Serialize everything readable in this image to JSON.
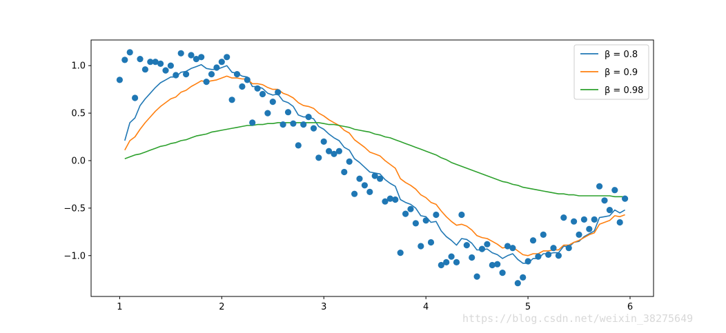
{
  "chart_data": {
    "type": "scatter",
    "xlim": [
      0.72,
      6.23
    ],
    "ylim": [
      -1.43,
      1.27
    ],
    "x_ticks": [
      1,
      2,
      3,
      4,
      5,
      6
    ],
    "x_tick_labels": [
      "1",
      "2",
      "3",
      "4",
      "5",
      "6"
    ],
    "y_ticks": [
      1.0,
      0.5,
      0.0,
      -0.5,
      -1.0
    ],
    "y_tick_labels": [
      "1.0",
      "0.5",
      "0.0",
      "−0.5",
      "−1.0"
    ],
    "grid": false,
    "legend_position": "top-right",
    "scatter": {
      "color": "#1f77b4",
      "x": [
        1.0,
        1.05,
        1.1,
        1.15,
        1.2,
        1.25,
        1.3,
        1.35,
        1.4,
        1.45,
        1.5,
        1.55,
        1.6,
        1.65,
        1.7,
        1.75,
        1.8,
        1.85,
        1.9,
        1.95,
        2.0,
        2.05,
        2.1,
        2.15,
        2.2,
        2.25,
        2.3,
        2.35,
        2.4,
        2.45,
        2.5,
        2.55,
        2.6,
        2.65,
        2.7,
        2.75,
        2.8,
        2.85,
        2.9,
        2.95,
        3.0,
        3.05,
        3.1,
        3.15,
        3.2,
        3.25,
        3.3,
        3.35,
        3.4,
        3.45,
        3.5,
        3.55,
        3.6,
        3.65,
        3.7,
        3.75,
        3.8,
        3.85,
        3.9,
        3.95,
        4.0,
        4.05,
        4.1,
        4.15,
        4.2,
        4.25,
        4.3,
        4.35,
        4.4,
        4.45,
        4.5,
        4.55,
        4.6,
        4.65,
        4.7,
        4.75,
        4.8,
        4.85,
        4.9,
        4.95,
        5.0,
        5.05,
        5.1,
        5.15,
        5.2,
        5.25,
        5.3,
        5.35,
        5.4,
        5.45,
        5.5,
        5.55,
        5.6,
        5.65,
        5.7,
        5.75,
        5.8,
        5.85,
        5.9,
        5.95
      ],
      "y": [
        0.85,
        1.06,
        1.14,
        0.66,
        1.07,
        0.96,
        1.04,
        1.04,
        1.02,
        0.95,
        1.0,
        0.9,
        1.13,
        0.91,
        1.11,
        1.07,
        1.09,
        0.83,
        0.91,
        0.98,
        1.04,
        1.09,
        0.64,
        0.91,
        0.78,
        0.85,
        0.4,
        0.76,
        0.7,
        0.5,
        0.62,
        0.72,
        0.38,
        0.51,
        0.39,
        0.16,
        0.38,
        0.46,
        0.34,
        0.03,
        0.2,
        0.1,
        0.07,
        0.1,
        -0.12,
        -0.01,
        -0.35,
        -0.19,
        -0.26,
        -0.33,
        -0.16,
        -0.19,
        -0.43,
        -0.4,
        -0.41,
        -0.97,
        -0.56,
        -0.51,
        -0.66,
        -0.9,
        -0.63,
        -0.86,
        -0.57,
        -1.1,
        -1.07,
        -1.01,
        -1.07,
        -0.57,
        -0.89,
        -1.02,
        -1.22,
        -0.93,
        -0.88,
        -1.1,
        -1.09,
        -1.18,
        -0.9,
        -0.92,
        -1.29,
        -1.23,
        -1.06,
        -0.84,
        -1.01,
        -0.78,
        -0.99,
        -0.92,
        -1.0,
        -0.6,
        -0.92,
        -0.64,
        -0.78,
        -0.62,
        -0.72,
        -0.62,
        -0.27,
        -0.42,
        -0.52,
        -0.31,
        -0.65,
        -0.4
      ]
    },
    "series": [
      {
        "name": "β = 0.8",
        "color": "#1f77b4",
        "x": [
          1.05,
          1.1,
          1.15,
          1.2,
          1.25,
          1.3,
          1.35,
          1.4,
          1.45,
          1.5,
          1.55,
          1.6,
          1.65,
          1.7,
          1.75,
          1.8,
          1.85,
          1.9,
          1.95,
          2.0,
          2.05,
          2.1,
          2.15,
          2.2,
          2.25,
          2.3,
          2.35,
          2.4,
          2.45,
          2.5,
          2.55,
          2.6,
          2.65,
          2.7,
          2.75,
          2.8,
          2.85,
          2.9,
          2.95,
          3.0,
          3.05,
          3.1,
          3.15,
          3.2,
          3.25,
          3.3,
          3.35,
          3.4,
          3.45,
          3.5,
          3.55,
          3.6,
          3.65,
          3.7,
          3.75,
          3.8,
          3.85,
          3.9,
          3.95,
          4.0,
          4.05,
          4.1,
          4.15,
          4.2,
          4.25,
          4.3,
          4.35,
          4.4,
          4.45,
          4.5,
          4.55,
          4.6,
          4.65,
          4.7,
          4.75,
          4.8,
          4.85,
          4.9,
          4.95,
          5.0,
          5.05,
          5.1,
          5.15,
          5.2,
          5.25,
          5.3,
          5.35,
          5.4,
          5.45,
          5.5,
          5.55,
          5.6,
          5.65,
          5.7,
          5.75,
          5.8,
          5.85,
          5.9,
          5.95
        ],
        "y": [
          0.21,
          0.4,
          0.45,
          0.58,
          0.65,
          0.71,
          0.77,
          0.82,
          0.85,
          0.88,
          0.88,
          0.93,
          0.94,
          0.97,
          0.99,
          1.01,
          0.97,
          0.96,
          0.96,
          0.98,
          1.0,
          0.93,
          0.92,
          0.89,
          0.88,
          0.78,
          0.78,
          0.76,
          0.71,
          0.69,
          0.7,
          0.63,
          0.61,
          0.57,
          0.48,
          0.46,
          0.46,
          0.44,
          0.36,
          0.33,
          0.28,
          0.24,
          0.21,
          0.14,
          0.11,
          0.02,
          -0.02,
          -0.07,
          -0.12,
          -0.13,
          -0.14,
          -0.2,
          -0.24,
          -0.27,
          -0.41,
          -0.44,
          -0.46,
          -0.5,
          -0.58,
          -0.59,
          -0.65,
          -0.64,
          -0.74,
          -0.8,
          -0.84,
          -0.89,
          -0.82,
          -0.83,
          -0.87,
          -0.94,
          -0.94,
          -0.93,
          -0.97,
          -0.99,
          -1.03,
          -1.0,
          -0.98,
          -1.04,
          -1.08,
          -1.08,
          -1.03,
          -1.03,
          -0.98,
          -0.98,
          -0.97,
          -0.97,
          -0.9,
          -0.91,
          -0.86,
          -0.85,
          -0.8,
          -0.77,
          -0.74,
          -0.6,
          -0.59,
          -0.58,
          -0.52,
          -0.55,
          -0.52
        ]
      },
      {
        "name": "β = 0.9",
        "color": "#ff7f0e",
        "x": [
          1.05,
          1.1,
          1.15,
          1.2,
          1.25,
          1.3,
          1.35,
          1.4,
          1.45,
          1.5,
          1.55,
          1.6,
          1.65,
          1.7,
          1.75,
          1.8,
          1.85,
          1.9,
          1.95,
          2.0,
          2.05,
          2.1,
          2.15,
          2.2,
          2.25,
          2.3,
          2.35,
          2.4,
          2.45,
          2.5,
          2.55,
          2.6,
          2.65,
          2.7,
          2.75,
          2.8,
          2.85,
          2.9,
          2.95,
          3.0,
          3.05,
          3.1,
          3.15,
          3.2,
          3.25,
          3.3,
          3.35,
          3.4,
          3.45,
          3.5,
          3.55,
          3.6,
          3.65,
          3.7,
          3.75,
          3.8,
          3.85,
          3.9,
          3.95,
          4.0,
          4.05,
          4.1,
          4.15,
          4.2,
          4.25,
          4.3,
          4.35,
          4.4,
          4.45,
          4.5,
          4.55,
          4.6,
          4.65,
          4.7,
          4.75,
          4.8,
          4.85,
          4.9,
          4.95,
          5.0,
          5.05,
          5.1,
          5.15,
          5.2,
          5.25,
          5.3,
          5.35,
          5.4,
          5.45,
          5.5,
          5.55,
          5.6,
          5.65,
          5.7,
          5.75,
          5.8,
          5.85,
          5.9,
          5.95
        ],
        "y": [
          0.11,
          0.21,
          0.25,
          0.33,
          0.4,
          0.46,
          0.52,
          0.57,
          0.61,
          0.65,
          0.67,
          0.72,
          0.74,
          0.78,
          0.81,
          0.84,
          0.83,
          0.84,
          0.85,
          0.87,
          0.89,
          0.87,
          0.87,
          0.86,
          0.86,
          0.81,
          0.81,
          0.8,
          0.77,
          0.75,
          0.75,
          0.71,
          0.69,
          0.66,
          0.61,
          0.58,
          0.57,
          0.55,
          0.5,
          0.47,
          0.43,
          0.4,
          0.37,
          0.32,
          0.29,
          0.22,
          0.18,
          0.14,
          0.09,
          0.07,
          0.05,
          0.0,
          -0.04,
          -0.08,
          -0.19,
          -0.23,
          -0.26,
          -0.3,
          -0.36,
          -0.39,
          -0.44,
          -0.46,
          -0.53,
          -0.59,
          -0.64,
          -0.68,
          -0.67,
          -0.69,
          -0.73,
          -0.79,
          -0.81,
          -0.82,
          -0.85,
          -0.88,
          -0.92,
          -0.91,
          -0.91,
          -0.95,
          -0.99,
          -1.0,
          -0.98,
          -0.98,
          -0.95,
          -0.95,
          -0.94,
          -0.94,
          -0.89,
          -0.89,
          -0.86,
          -0.84,
          -0.81,
          -0.78,
          -0.76,
          -0.67,
          -0.65,
          -0.63,
          -0.58,
          -0.59,
          -0.57
        ]
      },
      {
        "name": "β = 0.98",
        "color": "#2ca02c",
        "x": [
          1.05,
          1.1,
          1.15,
          1.2,
          1.25,
          1.3,
          1.35,
          1.4,
          1.45,
          1.5,
          1.55,
          1.6,
          1.65,
          1.7,
          1.75,
          1.8,
          1.85,
          1.9,
          1.95,
          2.0,
          2.05,
          2.1,
          2.15,
          2.2,
          2.25,
          2.3,
          2.35,
          2.4,
          2.45,
          2.5,
          2.55,
          2.6,
          2.65,
          2.7,
          2.75,
          2.8,
          2.85,
          2.9,
          2.95,
          3.0,
          3.05,
          3.1,
          3.15,
          3.2,
          3.25,
          3.3,
          3.35,
          3.4,
          3.45,
          3.5,
          3.55,
          3.6,
          3.65,
          3.7,
          3.75,
          3.8,
          3.85,
          3.9,
          3.95,
          4.0,
          4.05,
          4.1,
          4.15,
          4.2,
          4.25,
          4.3,
          4.35,
          4.4,
          4.45,
          4.5,
          4.55,
          4.6,
          4.65,
          4.7,
          4.75,
          4.8,
          4.85,
          4.9,
          4.95,
          5.0,
          5.05,
          5.1,
          5.15,
          5.2,
          5.25,
          5.3,
          5.35,
          5.4,
          5.45,
          5.5,
          5.55,
          5.6,
          5.65,
          5.7,
          5.75,
          5.8,
          5.85,
          5.9,
          5.95
        ],
        "y": [
          0.02,
          0.04,
          0.06,
          0.07,
          0.09,
          0.11,
          0.13,
          0.15,
          0.16,
          0.18,
          0.19,
          0.21,
          0.22,
          0.24,
          0.26,
          0.27,
          0.28,
          0.3,
          0.31,
          0.32,
          0.33,
          0.34,
          0.35,
          0.36,
          0.37,
          0.37,
          0.38,
          0.38,
          0.39,
          0.39,
          0.4,
          0.4,
          0.4,
          0.4,
          0.4,
          0.4,
          0.4,
          0.4,
          0.4,
          0.39,
          0.38,
          0.38,
          0.37,
          0.36,
          0.35,
          0.33,
          0.32,
          0.31,
          0.3,
          0.28,
          0.27,
          0.25,
          0.24,
          0.22,
          0.2,
          0.18,
          0.16,
          0.14,
          0.12,
          0.1,
          0.08,
          0.06,
          0.03,
          0.01,
          -0.02,
          -0.04,
          -0.06,
          -0.08,
          -0.1,
          -0.12,
          -0.14,
          -0.16,
          -0.18,
          -0.2,
          -0.22,
          -0.23,
          -0.25,
          -0.26,
          -0.28,
          -0.29,
          -0.3,
          -0.31,
          -0.32,
          -0.33,
          -0.34,
          -0.35,
          -0.35,
          -0.36,
          -0.36,
          -0.37,
          -0.37,
          -0.37,
          -0.37,
          -0.37,
          -0.37,
          -0.37,
          -0.38,
          -0.38,
          -0.38
        ]
      }
    ]
  },
  "watermark": "https://blog.csdn.net/weixin_38275649"
}
